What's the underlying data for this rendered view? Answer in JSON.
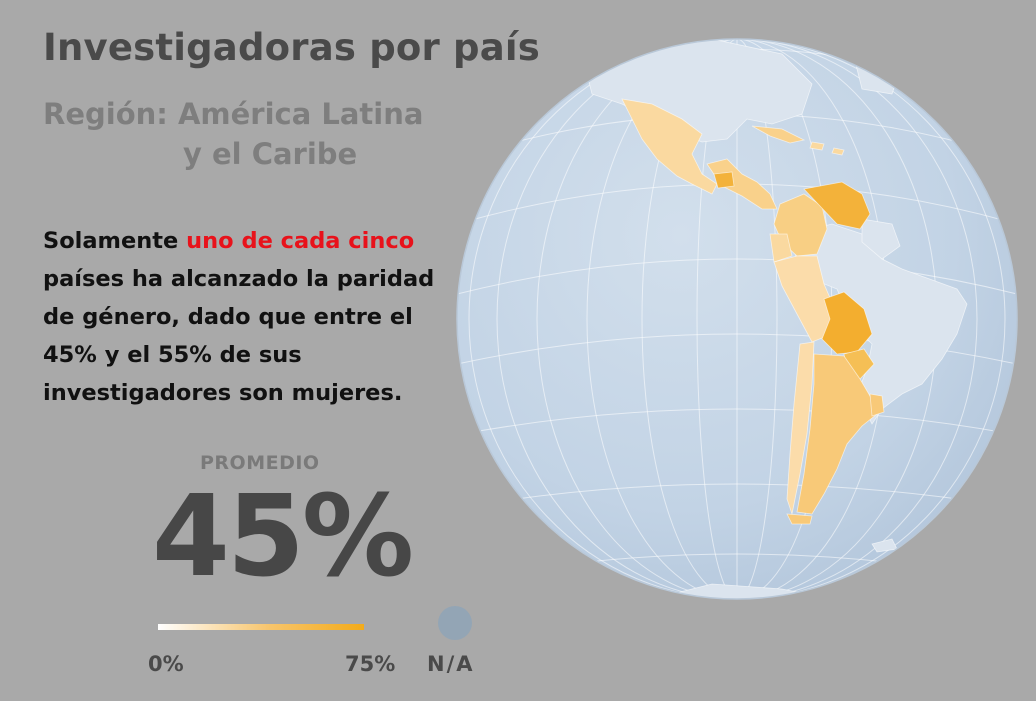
{
  "title": "Investigadoras por país",
  "subtitle": {
    "line1": "Región: América Latina",
    "line2": "y el Caribe"
  },
  "statement": {
    "before": "Solamente ",
    "highlight": "uno de cada cinco",
    "after": " países ha alcanzado la paridad de género, dado que entre el 45% y el 55% de sus investigadores son mujeres."
  },
  "average": {
    "label": "PROMEDIO",
    "value": "45%"
  },
  "legend": {
    "min": "0%",
    "max": "75%",
    "na": "N/A",
    "scale_start_color": "#ffffff",
    "scale_end_color": "#f3ab1a",
    "na_color": "#93a5b5"
  },
  "map": {
    "projection": "orthographic",
    "ocean_color": "#c5d5e6",
    "land_na_color": "#dbe4ee",
    "highlighted_regions": [
      {
        "name": "Mexico",
        "color": "#fad9a0"
      },
      {
        "name": "Central America",
        "color": "#f9d18b"
      },
      {
        "name": "Colombia",
        "color": "#f8cf84"
      },
      {
        "name": "Venezuela",
        "color": "#f3b23a"
      },
      {
        "name": "Ecuador",
        "color": "#fad9a0"
      },
      {
        "name": "Peru",
        "color": "#fbdcaa"
      },
      {
        "name": "Bolivia",
        "color": "#f3ae2f"
      },
      {
        "name": "Paraguay",
        "color": "#f5bf55"
      },
      {
        "name": "Chile",
        "color": "#fbdcaa"
      },
      {
        "name": "Argentina",
        "color": "#f8c978"
      },
      {
        "name": "Uruguay",
        "color": "#f8c978"
      },
      {
        "name": "Cuba",
        "color": "#f9d18b"
      }
    ]
  }
}
